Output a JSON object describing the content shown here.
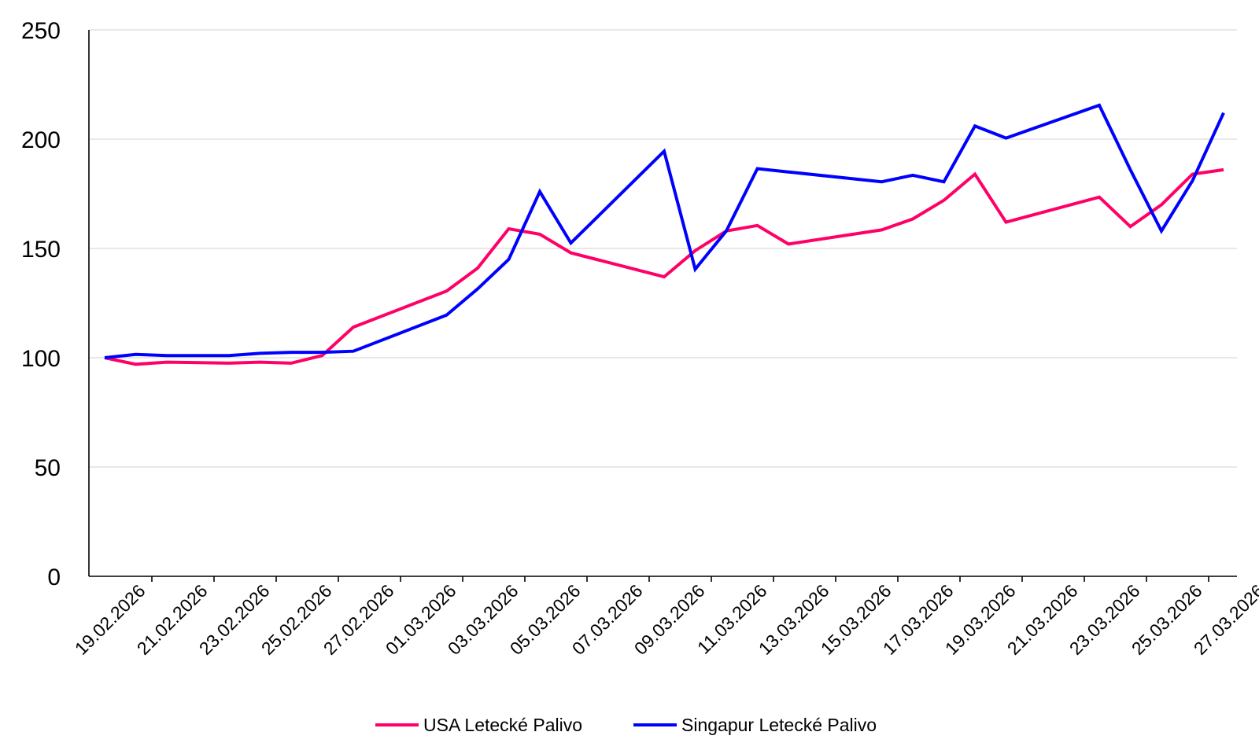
{
  "chart_data": {
    "type": "line",
    "title": "",
    "xlabel": "",
    "ylabel": "",
    "ylim": [
      0,
      250
    ],
    "yticks": [
      "0",
      "50",
      "100",
      "150",
      "200",
      "250"
    ],
    "ytick_values": [
      0,
      50,
      100,
      150,
      200,
      250
    ],
    "grid": true,
    "legend_position": "bottom-center",
    "x": [
      "19.02.2026",
      "20.02.2026",
      "21.02.2026",
      "23.02.2026",
      "24.02.2026",
      "25.02.2026",
      "26.02.2026",
      "27.02.2026",
      "02.03.2026",
      "03.03.2026",
      "04.03.2026",
      "05.03.2026",
      "06.03.2026",
      "09.03.2026",
      "10.03.2026",
      "11.03.2026",
      "12.03.2026",
      "13.03.2026",
      "16.03.2026",
      "17.03.2026",
      "18.03.2026",
      "19.03.2026",
      "20.03.2026",
      "23.03.2026",
      "24.03.2026",
      "25.03.2026",
      "26.03.2026",
      "27.03.2026"
    ],
    "x_tick_labels": [
      "19.02.2026",
      "21.02.2026",
      "23.02.2026",
      "25.02.2026",
      "27.02.2026",
      "01.03.2026",
      "03.03.2026",
      "05.03.2026",
      "07.03.2026",
      "09.03.2026",
      "11.03.2026",
      "13.03.2026",
      "15.03.2026",
      "17.03.2026",
      "19.03.2026",
      "21.03.2026",
      "23.03.2026",
      "25.03.2026",
      "27.03.2026"
    ],
    "series": [
      {
        "name": "USA Letecké Palivo",
        "color": "#ff0066",
        "values": [
          100,
          97,
          98,
          97.5,
          98,
          97.5,
          101,
          114,
          130.5,
          141,
          159,
          156.5,
          148,
          137,
          149,
          158,
          160.5,
          152,
          158.5,
          163.5,
          172,
          184,
          162,
          173.5,
          160,
          170,
          184,
          186
        ]
      },
      {
        "name": "Singapur Letecké Palivo",
        "color": "#0000ff",
        "values": [
          100,
          101.5,
          101,
          101,
          102,
          102.5,
          102.5,
          103,
          119.5,
          131.5,
          145,
          176,
          152.5,
          194.5,
          140.5,
          158,
          186.5,
          185,
          180.5,
          183.5,
          180.5,
          206,
          200.5,
          215.5,
          186,
          158,
          181,
          212
        ]
      }
    ]
  }
}
